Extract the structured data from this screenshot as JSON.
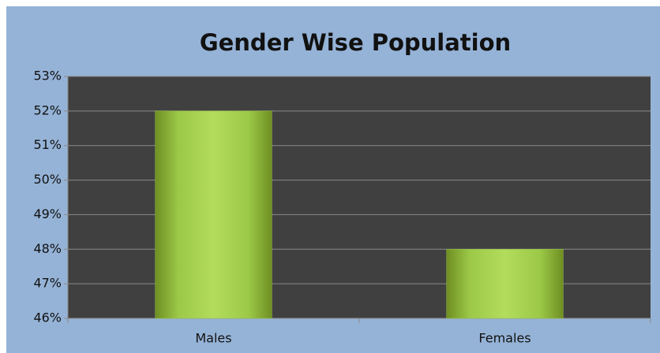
{
  "chart_data": {
    "type": "bar",
    "title": "Gender Wise Population",
    "categories": [
      "Males",
      "Females"
    ],
    "values": [
      52,
      48
    ],
    "color": "#9bc848",
    "ylim": [
      46,
      53
    ],
    "yticks": [
      {
        "value": 46,
        "label": "46%"
      },
      {
        "value": 47,
        "label": "47%"
      },
      {
        "value": 48,
        "label": "48%"
      },
      {
        "value": 49,
        "label": "49%"
      },
      {
        "value": 50,
        "label": "50%"
      },
      {
        "value": 51,
        "label": "51%"
      },
      {
        "value": 52,
        "label": "52%"
      },
      {
        "value": 53,
        "label": "53%"
      }
    ],
    "grid": true
  }
}
